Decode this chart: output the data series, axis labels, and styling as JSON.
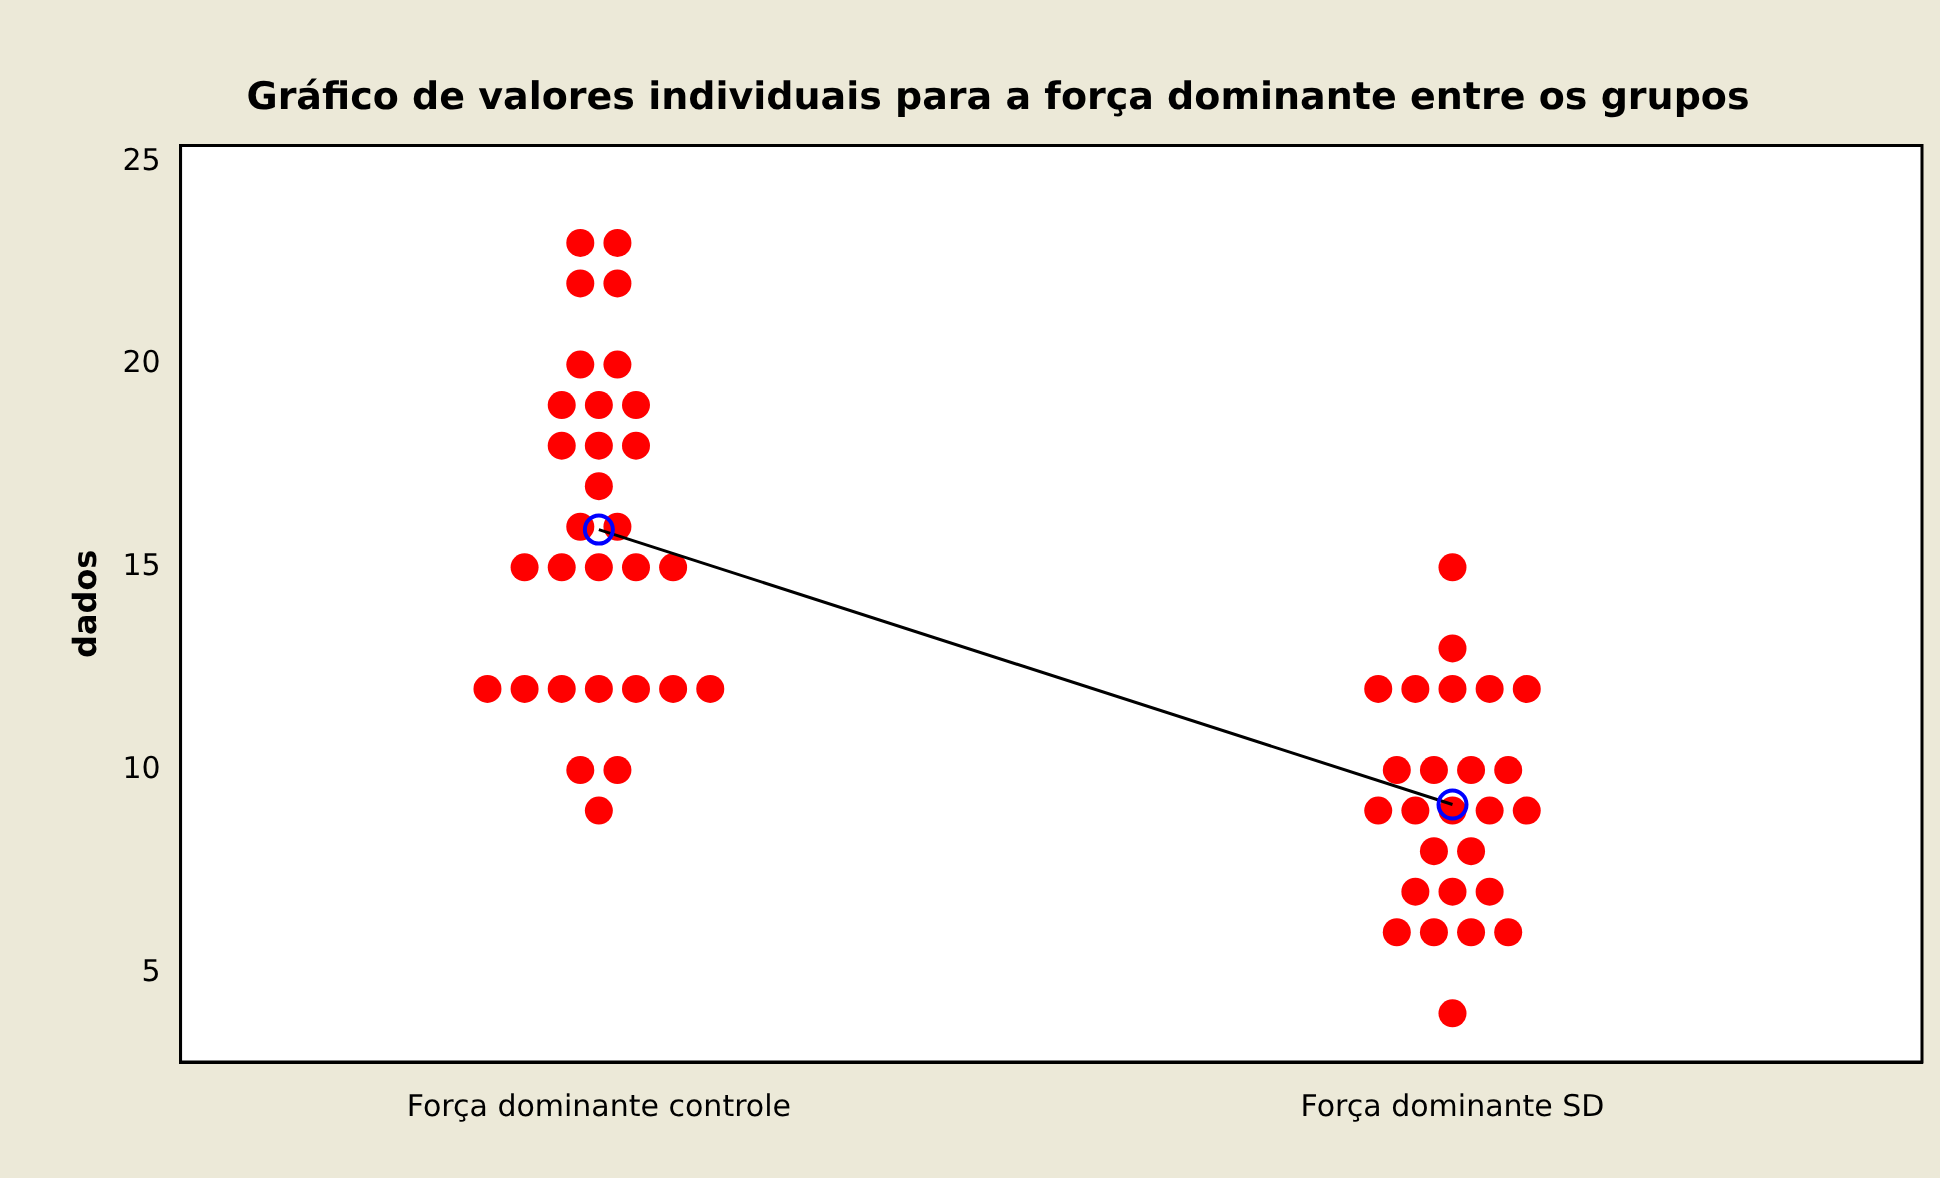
{
  "chart_data": {
    "type": "scatter",
    "title": "Gráfico de valores individuais para a força dominante entre os grupos",
    "ylabel": "dados",
    "categories": [
      "Força dominante controle",
      "Força dominante SD"
    ],
    "ylim": [
      2.8,
      25.4
    ],
    "yticks": [
      5,
      10,
      15,
      20,
      25
    ],
    "grid": false,
    "legend": false,
    "marker": "circle",
    "series": [
      {
        "type": "scatter",
        "color": "#ff0000",
        "x": [
          "Força dominante controle",
          "Força dominante controle",
          "Força dominante controle",
          "Força dominante controle",
          "Força dominante controle",
          "Força dominante controle",
          "Força dominante controle",
          "Força dominante controle",
          "Força dominante controle",
          "Força dominante controle",
          "Força dominante controle",
          "Força dominante controle",
          "Força dominante controle",
          "Força dominante controle",
          "Força dominante controle",
          "Força dominante controle",
          "Força dominante controle",
          "Força dominante controle",
          "Força dominante controle",
          "Força dominante controle",
          "Força dominante controle",
          "Força dominante controle",
          "Força dominante controle",
          "Força dominante controle",
          "Força dominante controle",
          "Força dominante controle",
          "Força dominante controle",
          "Força dominante controle",
          "Força dominante controle",
          "Força dominante controle"
        ],
        "values": [
          23,
          23,
          22,
          22,
          20,
          20,
          19,
          19,
          19,
          18,
          18,
          18,
          17,
          16,
          16,
          15,
          15,
          15,
          15,
          15,
          12,
          12,
          12,
          12,
          12,
          12,
          12,
          10,
          10,
          9
        ]
      },
      {
        "type": "scatter",
        "color": "#ff0000",
        "x": [
          "Força dominante SD",
          "Força dominante SD",
          "Força dominante SD",
          "Força dominante SD",
          "Força dominante SD",
          "Força dominante SD",
          "Força dominante SD",
          "Força dominante SD",
          "Força dominante SD",
          "Força dominante SD",
          "Força dominante SD",
          "Força dominante SD",
          "Força dominante SD",
          "Força dominante SD",
          "Força dominante SD",
          "Força dominante SD",
          "Força dominante SD",
          "Força dominante SD",
          "Força dominante SD",
          "Força dominante SD",
          "Força dominante SD",
          "Força dominante SD",
          "Força dominante SD",
          "Força dominante SD",
          "Força dominante SD",
          "Força dominante SD"
        ],
        "values": [
          15,
          13,
          12,
          12,
          12,
          12,
          12,
          10,
          10,
          10,
          10,
          9,
          9,
          9,
          9,
          9,
          8,
          8,
          7,
          7,
          7,
          6,
          6,
          6,
          6,
          4
        ]
      },
      {
        "type": "line",
        "color": "#000000",
        "marker": "none",
        "values": [
          15.93,
          9.15
        ]
      },
      {
        "type": "scatter",
        "color": "#0000ff",
        "marker": "circle",
        "values": [
          15.93,
          9.15
        ]
      }
    ]
  }
}
